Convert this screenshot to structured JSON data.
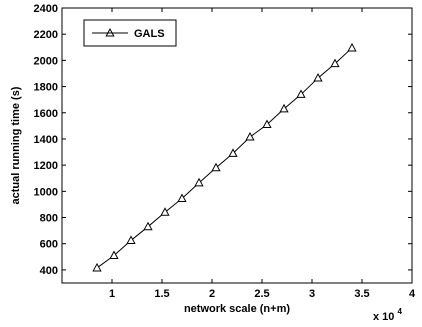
{
  "chart_data": {
    "type": "line",
    "xlabel": "network scale (n+m)",
    "ylabel": "actual running time (s)",
    "x_multiplier": "x 10",
    "x_multiplier_exp": "4",
    "xlim": [
      0.5,
      4.0
    ],
    "ylim": [
      300,
      2400
    ],
    "xticks": [
      "1",
      "1.5",
      "2",
      "2.5",
      "3",
      "3.5",
      "4"
    ],
    "yticks": [
      "400",
      "600",
      "800",
      "1000",
      "1200",
      "1400",
      "1600",
      "1800",
      "2000",
      "2200",
      "2400"
    ],
    "legend_position": "top-left",
    "grid": false,
    "series": [
      {
        "name": "GALS",
        "marker": "triangle",
        "color": "#000000",
        "x": [
          0.85,
          1.02,
          1.19,
          1.36,
          1.53,
          1.7,
          1.87,
          2.04,
          2.21,
          2.38,
          2.55,
          2.72,
          2.89,
          3.06,
          3.23,
          3.4
        ],
        "y": [
          415,
          510,
          625,
          730,
          840,
          945,
          1065,
          1180,
          1290,
          1415,
          1510,
          1630,
          1740,
          1865,
          1975,
          2095
        ]
      }
    ]
  }
}
